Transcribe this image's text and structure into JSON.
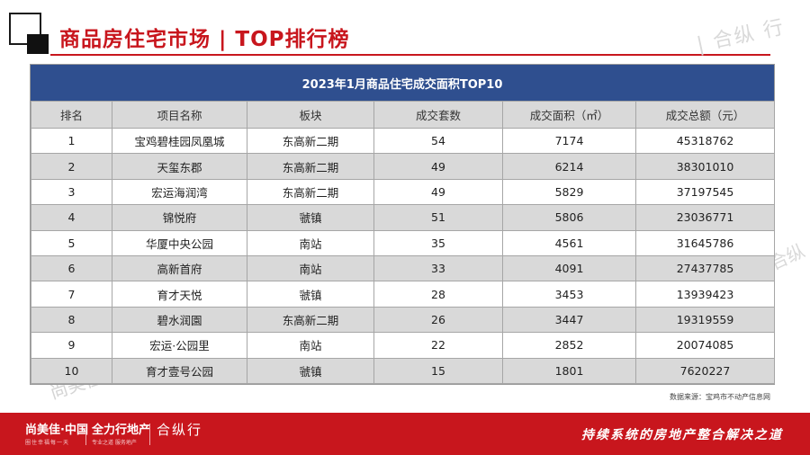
{
  "header": {
    "title": "商品房住宅市场 | TOP排行榜"
  },
  "watermarks": {
    "top": "| 合纵 行",
    "right": "合纵",
    "bottom": "尚美佳"
  },
  "table": {
    "caption": "2023年1月商品住宅成交面积TOP10",
    "headers": [
      "排名",
      "项目名称",
      "板块",
      "成交套数",
      "成交面积（㎡）",
      "成交总额（元）"
    ],
    "rows": [
      [
        "1",
        "宝鸡碧桂园凤凰城",
        "东高新二期",
        "54",
        "7174",
        "45318762"
      ],
      [
        "2",
        "天玺东郡",
        "东高新二期",
        "49",
        "6214",
        "38301010"
      ],
      [
        "3",
        "宏运海润湾",
        "东高新二期",
        "49",
        "5829",
        "37197545"
      ],
      [
        "4",
        "锦悦府",
        "虢镇",
        "51",
        "5806",
        "23036771"
      ],
      [
        "5",
        "华厦中央公园",
        "南站",
        "35",
        "4561",
        "31645786"
      ],
      [
        "6",
        "高新首府",
        "南站",
        "33",
        "4091",
        "27437785"
      ],
      [
        "7",
        "育才天悦",
        "虢镇",
        "28",
        "3453",
        "13939423"
      ],
      [
        "8",
        "碧水润園",
        "东高新二期",
        "26",
        "3447",
        "19319559"
      ],
      [
        "9",
        "宏运·公园里",
        "南站",
        "22",
        "2852",
        "20074085"
      ],
      [
        "10",
        "育才壹号公园",
        "虢镇",
        "15",
        "1801",
        "7620227"
      ]
    ]
  },
  "source": "数据来源：宝鸡市不动产信息网",
  "footer": {
    "brand1": "尚美佳·中国",
    "brand1_sub": "圈住幸福每一天",
    "brand2": "全力行地产",
    "brand2_sub": "专业之道 服务地产",
    "brand3": "合纵行",
    "slogan": "持续系统的房地产整合解决之道"
  },
  "colors": {
    "brand_red": "#c8161d",
    "table_header_blue": "#2f4f8f",
    "row_gray": "#d9d9d9"
  }
}
